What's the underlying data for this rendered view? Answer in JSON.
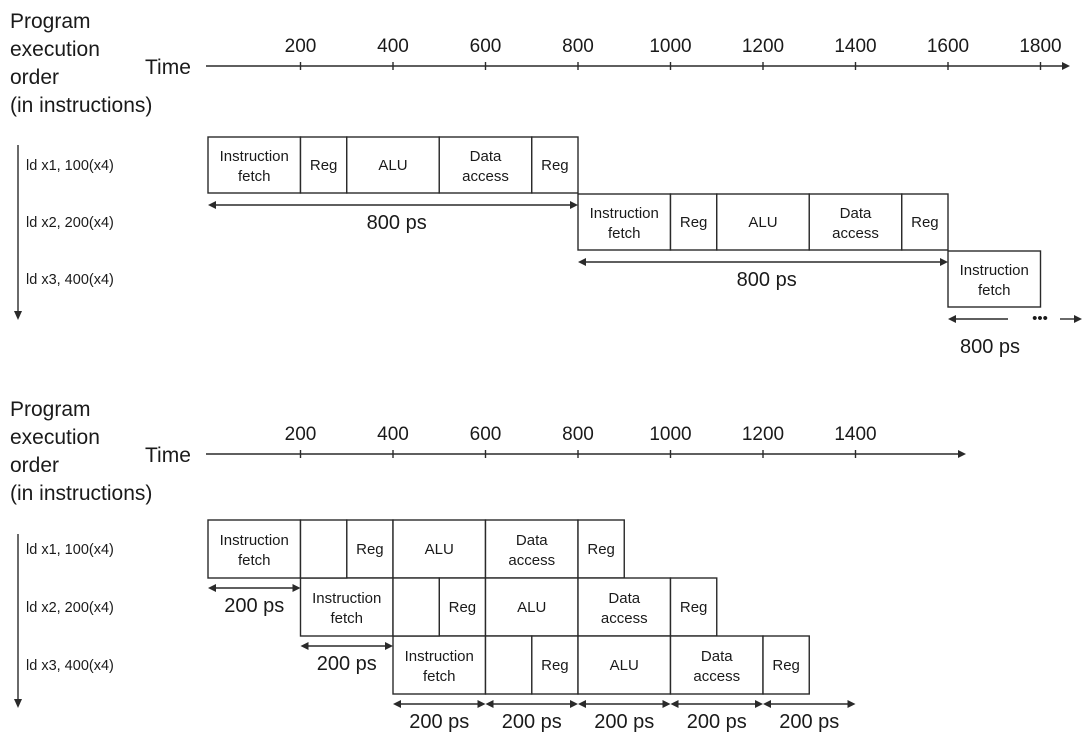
{
  "panels": [
    {
      "id": "non-pipelined",
      "order_label": [
        "Program",
        "execution",
        "order",
        "(in instructions)"
      ],
      "time_label": "Time",
      "ticks": [
        "200",
        "400",
        "600",
        "800",
        "1000",
        "1200",
        "1400",
        "1600",
        "1800"
      ],
      "instructions": [
        "ld x1, 100(x4)",
        "ld x2, 200(x4)",
        "ld x3, 400(x4)"
      ],
      "stages": [
        {
          "row": 0,
          "start": 100,
          "end": 300,
          "text": [
            "Instruction",
            "fetch"
          ]
        },
        {
          "row": 0,
          "start": 300,
          "end": 400,
          "text": [
            "Reg"
          ]
        },
        {
          "row": 0,
          "start": 400,
          "end": 600,
          "text": [
            "ALU"
          ]
        },
        {
          "row": 0,
          "start": 600,
          "end": 800,
          "text": [
            "Data",
            "access"
          ]
        },
        {
          "row": 0,
          "start": 800,
          "end": 900,
          "text": [
            "Reg"
          ]
        },
        {
          "row": 1,
          "start": 900,
          "end": 1100,
          "text": [
            "Instruction",
            "fetch"
          ]
        },
        {
          "row": 1,
          "start": 1100,
          "end": 1200,
          "text": [
            "Reg"
          ]
        },
        {
          "row": 1,
          "start": 1200,
          "end": 1400,
          "text": [
            "ALU"
          ]
        },
        {
          "row": 1,
          "start": 1400,
          "end": 1600,
          "text": [
            "Data",
            "access"
          ]
        },
        {
          "row": 1,
          "start": 1600,
          "end": 1700,
          "text": [
            "Reg"
          ]
        },
        {
          "row": 2,
          "start": 1700,
          "end": 1900,
          "text": [
            "Instruction",
            "fetch"
          ]
        }
      ],
      "spans": [
        {
          "row": 0,
          "start": 100,
          "end": 900,
          "label": "800 ps"
        },
        {
          "row": 1,
          "start": 900,
          "end": 1700,
          "label": "800 ps"
        },
        {
          "row": 2,
          "start": 1700,
          "end": 2100,
          "label": "800 ps",
          "continues": "•••"
        }
      ]
    },
    {
      "id": "pipelined",
      "order_label": [
        "Program",
        "execution",
        "order",
        "(in instructions)"
      ],
      "time_label": "Time",
      "ticks": [
        "200",
        "400",
        "600",
        "800",
        "1000",
        "1200",
        "1400"
      ],
      "instructions": [
        "ld x1, 100(x4)",
        "ld x2, 200(x4)",
        "ld x3, 400(x4)"
      ],
      "stages": [
        {
          "row": 0,
          "start": 100,
          "end": 300,
          "text": [
            "Instruction",
            "fetch"
          ]
        },
        {
          "row": 0,
          "start": 400,
          "end": 500,
          "text": [
            "Reg"
          ]
        },
        {
          "row": 0,
          "start": 500,
          "end": 700,
          "text": [
            "ALU"
          ]
        },
        {
          "row": 0,
          "start": 700,
          "end": 900,
          "text": [
            "Data",
            "access"
          ]
        },
        {
          "row": 0,
          "start": 900,
          "end": 1000,
          "text": [
            "Reg"
          ]
        },
        {
          "row": 1,
          "start": 300,
          "end": 500,
          "text": [
            "Instruction",
            "fetch"
          ]
        },
        {
          "row": 1,
          "start": 600,
          "end": 700,
          "text": [
            "Reg"
          ]
        },
        {
          "row": 1,
          "start": 700,
          "end": 900,
          "text": [
            "ALU"
          ]
        },
        {
          "row": 1,
          "start": 900,
          "end": 1100,
          "text": [
            "Data",
            "access"
          ]
        },
        {
          "row": 1,
          "start": 1100,
          "end": 1200,
          "text": [
            "Reg"
          ]
        },
        {
          "row": 2,
          "start": 500,
          "end": 700,
          "text": [
            "Instruction",
            "fetch"
          ]
        },
        {
          "row": 2,
          "start": 800,
          "end": 900,
          "text": [
            "Reg"
          ]
        },
        {
          "row": 2,
          "start": 900,
          "end": 1100,
          "text": [
            "ALU"
          ]
        },
        {
          "row": 2,
          "start": 1100,
          "end": 1300,
          "text": [
            "Data",
            "access"
          ]
        },
        {
          "row": 2,
          "start": 1300,
          "end": 1400,
          "text": [
            "Reg"
          ]
        }
      ],
      "gaps": [
        {
          "row": 0,
          "start": 300,
          "end": 400
        },
        {
          "row": 1,
          "start": 500,
          "end": 600
        },
        {
          "row": 2,
          "start": 700,
          "end": 800
        }
      ],
      "spans": [
        {
          "row": 0,
          "start": 100,
          "end": 300,
          "label": "200 ps"
        },
        {
          "row": 1,
          "start": 300,
          "end": 500,
          "label": "200 ps"
        },
        {
          "row": 2,
          "start": 500,
          "end": 700,
          "label": "200 ps"
        },
        {
          "row": 2,
          "start": 700,
          "end": 900,
          "label": "200 ps"
        },
        {
          "row": 2,
          "start": 900,
          "end": 1100,
          "label": "200 ps"
        },
        {
          "row": 2,
          "start": 1100,
          "end": 1300,
          "label": "200 ps"
        },
        {
          "row": 2,
          "start": 1300,
          "end": 1500,
          "label": "200 ps"
        }
      ]
    }
  ]
}
